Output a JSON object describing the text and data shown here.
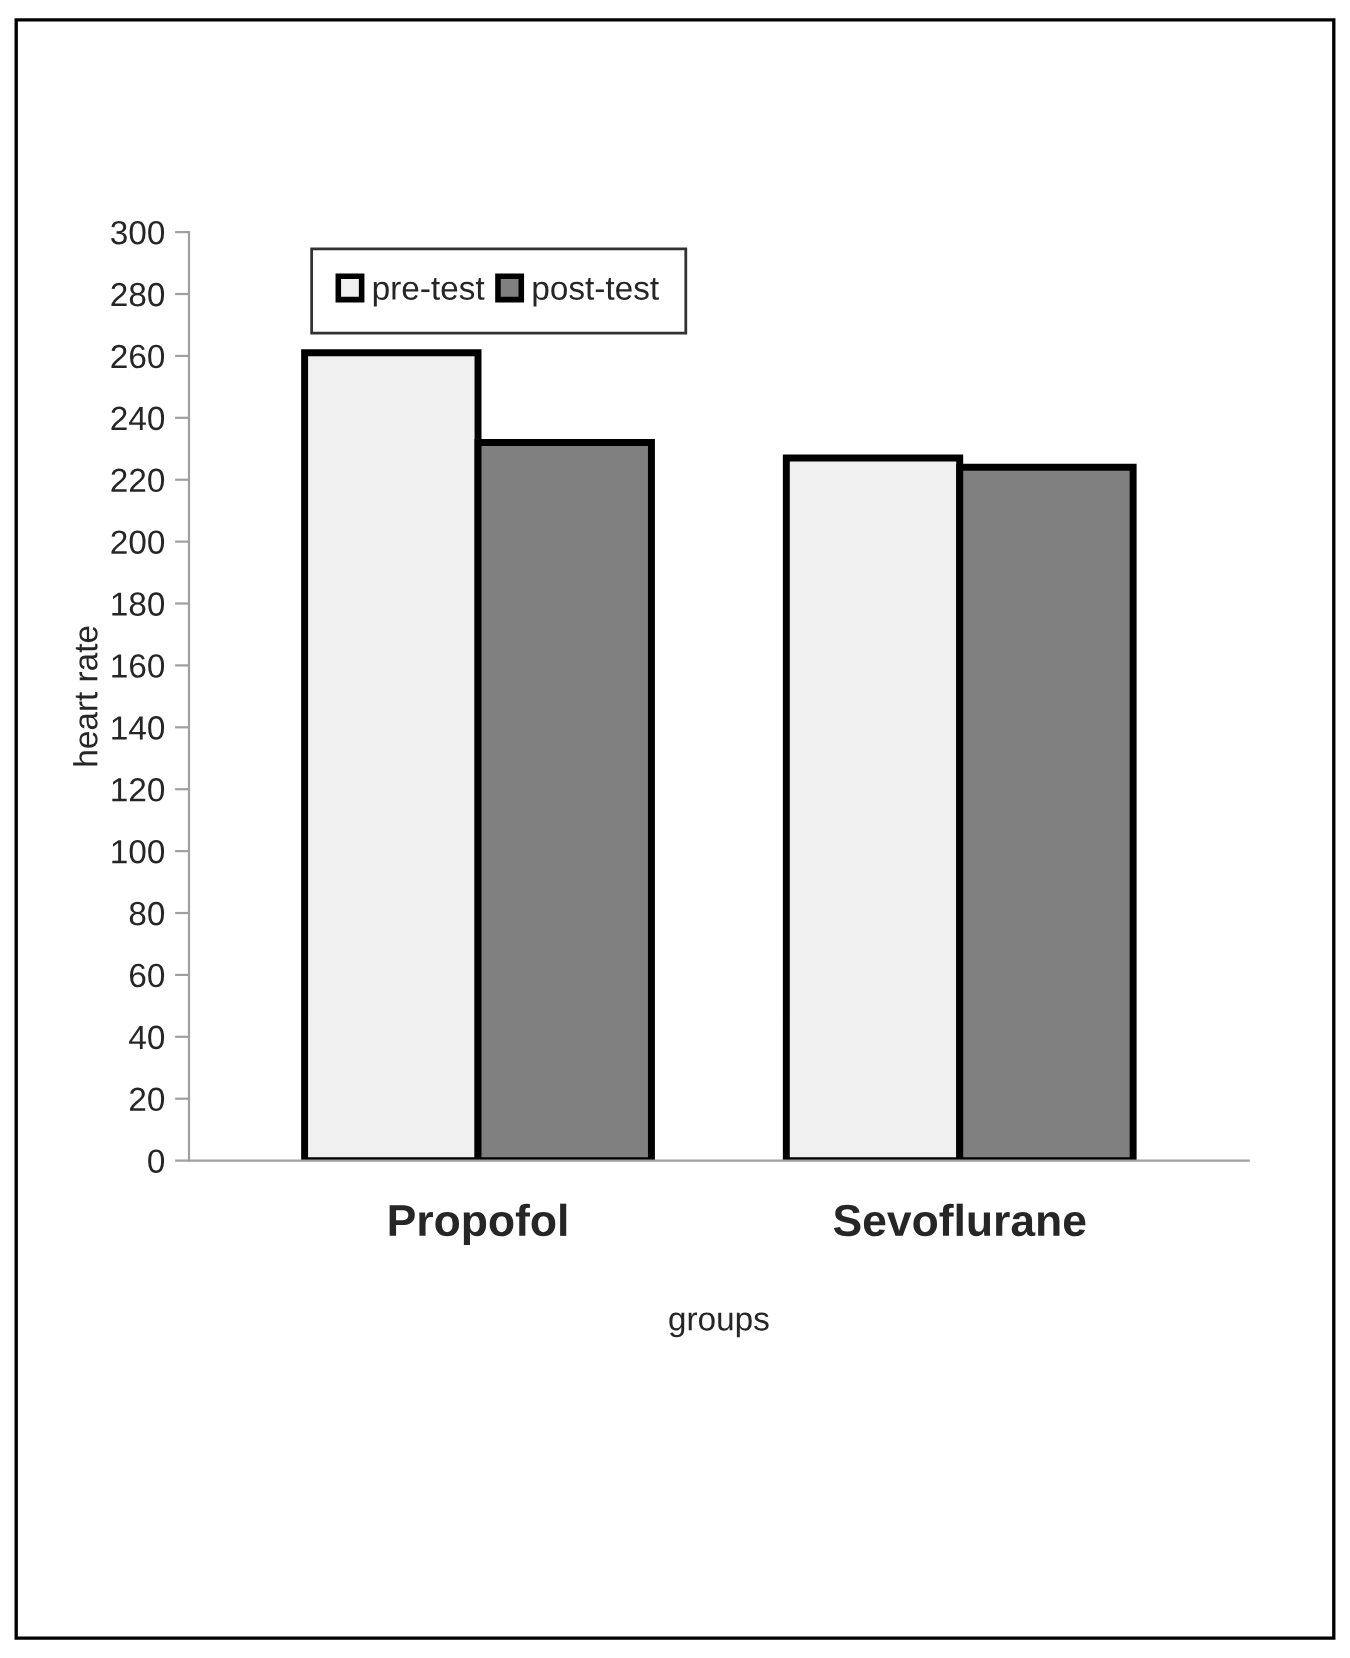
{
  "chart_data": {
    "type": "bar",
    "xlabel": "groups",
    "ylabel": "heart rate",
    "categories": [
      "Propofol",
      "Sevoflurane"
    ],
    "series": [
      {
        "name": "pre-test",
        "color": "#f0f0f0",
        "values": [
          261,
          227
        ]
      },
      {
        "name": "post-test",
        "color": "#808080",
        "values": [
          232,
          224
        ]
      }
    ],
    "ylim": [
      0,
      300
    ],
    "yticks": [
      0,
      20,
      40,
      60,
      80,
      100,
      120,
      140,
      160,
      180,
      200,
      220,
      240,
      260,
      280,
      300
    ],
    "grid": false,
    "legend": "top left"
  }
}
